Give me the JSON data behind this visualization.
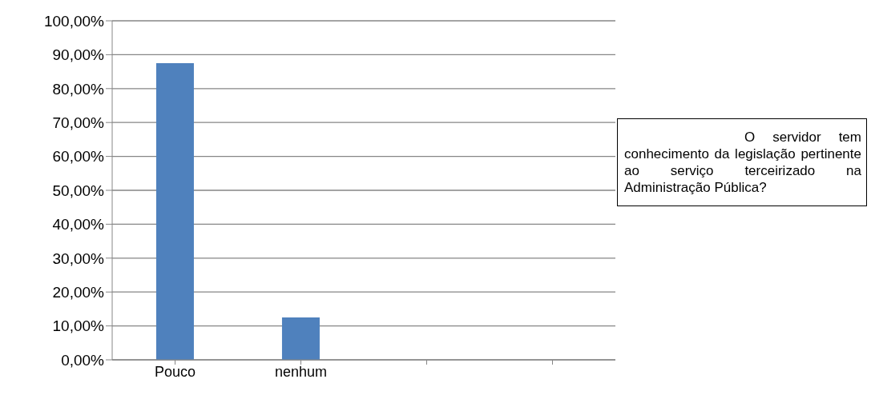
{
  "chart_data": {
    "type": "bar",
    "title": "O servidor tem conhecimento da legislação pertinente ao serviço terceirizado na Administração Pública?",
    "categories": [
      "Pouco",
      "nenhum",
      null,
      null
    ],
    "values": [
      87.5,
      12.5,
      null,
      null
    ],
    "color": "#4f81bd",
    "ylim": [
      0,
      100
    ],
    "yticks": [
      {
        "value": 0,
        "label": "0,00%"
      },
      {
        "value": 10,
        "label": "10,00%"
      },
      {
        "value": 20,
        "label": "20,00%"
      },
      {
        "value": 30,
        "label": "30,00%"
      },
      {
        "value": 40,
        "label": "40,00%"
      },
      {
        "value": 50,
        "label": "50,00%"
      },
      {
        "value": 60,
        "label": "60,00%"
      },
      {
        "value": 70,
        "label": "70,00%"
      },
      {
        "value": 80,
        "label": "80,00%"
      },
      {
        "value": 90,
        "label": "90,00%"
      },
      {
        "value": 100,
        "label": "100,00%"
      }
    ],
    "grid": "y"
  }
}
